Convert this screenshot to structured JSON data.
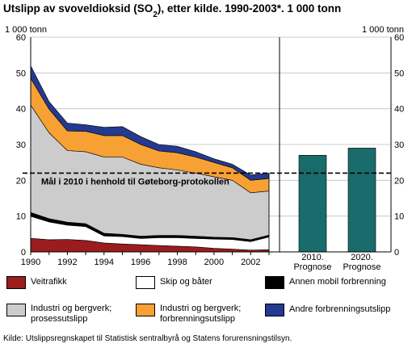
{
  "chart_data": {
    "type": "area",
    "title": "Utslipp av svoveldioksid (SO",
    "title_sub": "2",
    "title_rest": "), etter kilde. 1990-2003*. 1 000 tonn",
    "ylabel_left": "1 000 tonn",
    "ylabel_right": "1 000 tonn",
    "ylim": [
      0,
      60
    ],
    "yticks": [
      "0",
      "10",
      "20",
      "30",
      "40",
      "50",
      "60"
    ],
    "x": [
      1990,
      1991,
      1992,
      1993,
      1994,
      1995,
      1996,
      1997,
      1998,
      1999,
      2000,
      2001,
      2002,
      2003
    ],
    "xtick_labels": [
      "1990",
      "1992",
      "1994",
      "1996",
      "1998",
      "2000",
      "2002"
    ],
    "xtick_values": [
      1990,
      1992,
      1994,
      1996,
      1998,
      2000,
      2002
    ],
    "series": [
      {
        "name": "Veitrafikk",
        "color": "#9b1c1c",
        "values": [
          3.8,
          3.4,
          3.5,
          3.2,
          2.5,
          2.2,
          2.0,
          1.8,
          1.6,
          1.4,
          1.0,
          0.8,
          0.5,
          0.6
        ]
      },
      {
        "name": "Skip og båter",
        "color": "#ffffff",
        "values": [
          6.2,
          5.0,
          4.0,
          3.9,
          2.0,
          2.1,
          1.8,
          2.2,
          2.4,
          2.4,
          2.6,
          2.7,
          2.4,
          3.6
        ]
      },
      {
        "name": "Annen mobil forbrenning",
        "color": "#000000",
        "values": [
          1.0,
          0.9,
          0.8,
          0.8,
          0.7,
          0.6,
          0.6,
          0.6,
          0.6,
          0.6,
          0.5,
          0.5,
          0.5,
          0.5
        ]
      },
      {
        "name": "Industri og bergverk; prosessutslipp",
        "color": "#cccccc",
        "values": [
          30.0,
          24.0,
          20.0,
          20.1,
          21.3,
          21.6,
          20.1,
          18.9,
          18.3,
          17.6,
          16.9,
          16.0,
          13.1,
          12.3
        ]
      },
      {
        "name": "Industri og bergverk; forbrenningsutslipp",
        "color": "#f7a034",
        "values": [
          7.5,
          6.6,
          5.5,
          5.7,
          6.0,
          6.0,
          5.5,
          4.7,
          4.8,
          4.5,
          4.0,
          3.5,
          3.5,
          3.5
        ]
      },
      {
        "name": "Andre forbrenningsutslipp",
        "color": "#233a8e",
        "values": [
          3.5,
          2.1,
          2.2,
          1.8,
          2.3,
          2.5,
          2.2,
          1.8,
          1.8,
          1.5,
          1.0,
          1.0,
          1.5,
          1.5
        ]
      }
    ],
    "forecast": {
      "color": "#1a6b6b",
      "bars": [
        {
          "label_line1": "2010.",
          "label_line2": "Prognose",
          "value": 27
        },
        {
          "label_line1": "2020.",
          "label_line2": "Prognose",
          "value": 29
        }
      ]
    },
    "target_line": {
      "value": 22,
      "label": "Mål i 2010 i henhold til Gøteborg-protokollen"
    },
    "legend": [
      {
        "name": "Veitrafikk",
        "color": "#9b1c1c"
      },
      {
        "name": "Skip og båter",
        "color": "#ffffff"
      },
      {
        "name": "Annen mobil forbrenning",
        "color": "#000000"
      },
      {
        "name": "Industri og bergverk; prosessutslipp",
        "line1": "Industri og bergverk;",
        "line2": "prosessutslipp",
        "color": "#cccccc"
      },
      {
        "name": "Industri og bergverk; forbrenningsutslipp",
        "line1": "Industri og bergverk;",
        "line2": "forbrenningsutslipp",
        "color": "#f7a034"
      },
      {
        "name": "Andre forbrenningsutslipp",
        "color": "#233a8e"
      }
    ]
  },
  "source": "Kilde: Utslippsregnskapet til Statistisk sentralbyrå og Statens forurensningstilsyn."
}
